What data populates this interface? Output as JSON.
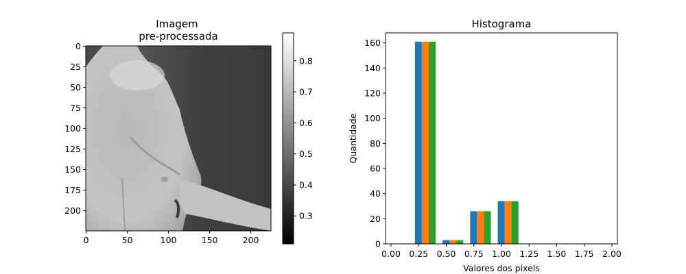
{
  "chart_data": [
    {
      "type": "heatmap",
      "title": "Imagem\npre-processada",
      "image_description": "grayscale thermal image, torso from the side",
      "xticks": [
        "0",
        "50",
        "100",
        "150",
        "200"
      ],
      "yticks": [
        "0",
        "25",
        "50",
        "75",
        "100",
        "125",
        "150",
        "175",
        "200"
      ],
      "x_range": [
        0,
        224
      ],
      "y_range": [
        0,
        224
      ],
      "colorbar": {
        "colormap": "gray",
        "range": [
          0.21,
          0.89
        ],
        "ticks": [
          "0.3",
          "0.4",
          "0.5",
          "0.6",
          "0.7",
          "0.8"
        ]
      }
    },
    {
      "type": "bar",
      "title": "Histograma",
      "xlabel": "Valores dos pixels",
      "ylabel": "Quantidade",
      "xlim": [
        -0.05,
        2.05
      ],
      "ylim": [
        0,
        168
      ],
      "xticks": [
        "0.00",
        "0.25",
        "0.50",
        "0.75",
        "1.00",
        "1.25",
        "1.50",
        "1.75",
        "2.00"
      ],
      "yticks": [
        "0",
        "20",
        "40",
        "60",
        "80",
        "100",
        "120",
        "140",
        "160"
      ],
      "bin_centers": [
        0.31,
        0.56,
        0.81,
        1.06
      ],
      "bar_width": 0.0625,
      "series": [
        {
          "values": [
            161,
            3,
            26,
            34
          ],
          "color": "#1f77b4"
        },
        {
          "values": [
            161,
            3,
            26,
            34
          ],
          "color": "#ff7f0e"
        },
        {
          "values": [
            161,
            3,
            26,
            34
          ],
          "color": "#2ca02c"
        }
      ]
    }
  ]
}
